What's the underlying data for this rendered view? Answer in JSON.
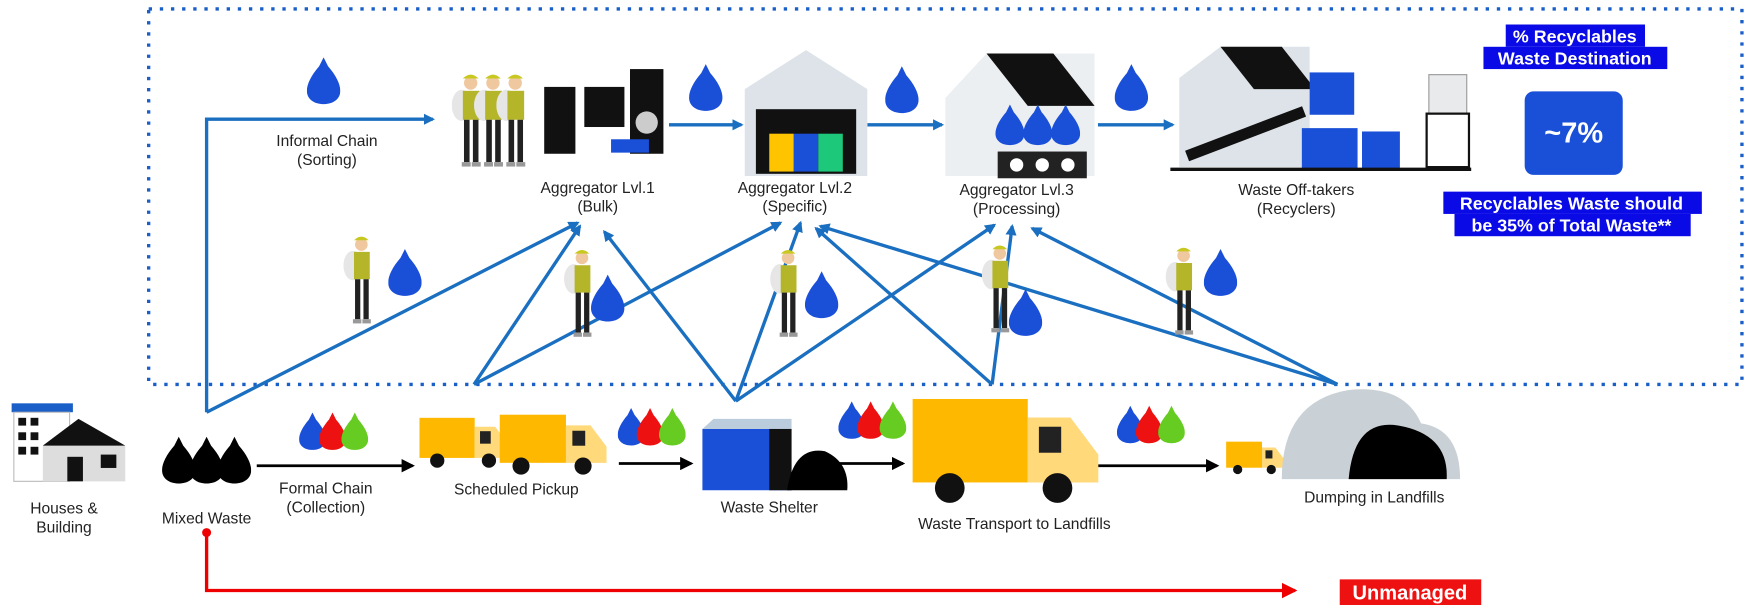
{
  "nodes": [
    {
      "label": [
        "Houses &",
        "Building"
      ]
    },
    {
      "label": [
        "Mixed Waste"
      ]
    },
    {
      "label": [
        "Formal Chain",
        "(Collection)"
      ]
    },
    {
      "label": [
        "Scheduled Pickup"
      ]
    },
    {
      "label": [
        "Waste Shelter"
      ]
    },
    {
      "label": [
        "Waste Transport to Landfills"
      ]
    },
    {
      "label": [
        "Dumping in Landfills"
      ]
    },
    {
      "label": [
        "Informal Chain",
        "(Sorting)"
      ]
    },
    {
      "label": [
        "Aggregator Lvl.1",
        "(Bulk)"
      ]
    },
    {
      "label": [
        "Aggregator Lvl.2",
        "(Specific)"
      ]
    },
    {
      "label": [
        "Aggregator Lvl.3",
        "(Processing)"
      ]
    },
    {
      "label": [
        "Waste Off-takers",
        "(Recyclers)"
      ]
    }
  ],
  "callout": {
    "title": [
      "% Recyclables",
      "Waste Destination"
    ],
    "value": "~7%",
    "note": [
      "Recyclables Waste should",
      "be 35% of Total Waste**"
    ]
  },
  "unmanaged": "Unmanaged"
}
